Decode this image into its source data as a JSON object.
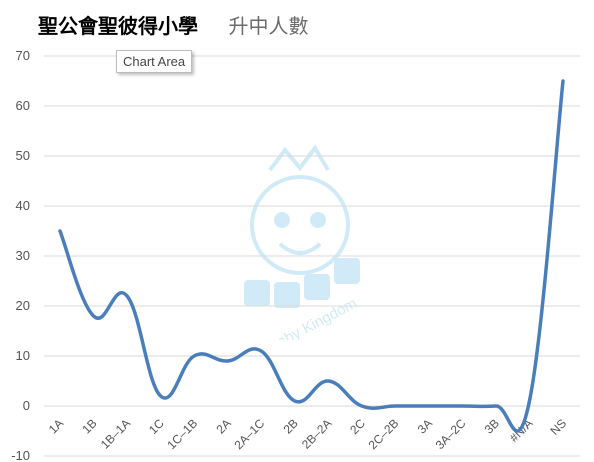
{
  "header": {
    "title": "聖公會聖彼得小學",
    "subtitle": "升中人數"
  },
  "tooltip": {
    "label": "Chart Area"
  },
  "watermark": {
    "icon": "baby-kingdom-logo",
    "text": "Baby Kingdom"
  },
  "colors": {
    "line": "#4a7ebb",
    "grid": "#d9d9d9",
    "watermark": "#7ec4ea"
  },
  "chart_data": {
    "type": "line",
    "smooth": true,
    "categories": [
      "1A",
      "1B",
      "1B–1A",
      "1C",
      "1C–1B",
      "2A",
      "2A–1C",
      "2B",
      "2B–2A",
      "2C",
      "2C–2B",
      "3A",
      "3A–2C",
      "3B",
      "#N/A",
      "NS"
    ],
    "values": [
      35,
      18,
      22,
      2,
      10,
      9,
      11,
      1,
      5,
      0,
      0,
      0,
      0,
      0,
      1,
      65
    ],
    "ylim": [
      -10,
      70
    ],
    "yticks": [
      -10,
      0,
      10,
      20,
      30,
      40,
      50,
      60,
      70
    ],
    "grid": true,
    "legend": "none"
  }
}
